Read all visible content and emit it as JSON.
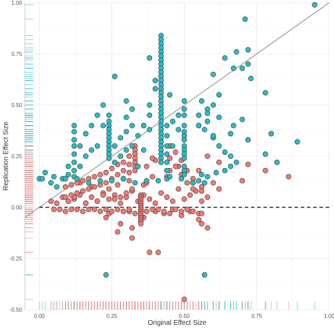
{
  "chart_data": {
    "type": "scatter",
    "title": "",
    "xlabel": "Original Effect Size",
    "ylabel": "Replication Effect Size",
    "xlim": [
      -0.05,
      1.0
    ],
    "ylim": [
      -0.5,
      1.0
    ],
    "x_ticks": [
      0.0,
      0.25,
      0.5,
      0.75,
      1.0
    ],
    "x_tick_labels": [
      "0.00",
      "0.25",
      "0.50",
      "0.75",
      "1.00"
    ],
    "y_ticks": [
      -0.5,
      -0.25,
      0.0,
      0.25,
      0.5,
      0.75,
      1.0
    ],
    "y_tick_labels": [
      "-0.50",
      "-0.25",
      "0.00",
      "0.25",
      "0.50",
      "0.75",
      "1.00"
    ],
    "grid": true,
    "legend": "none",
    "reference_lines": [
      {
        "kind": "identity",
        "description": "y = x",
        "color": "#999999",
        "style": "solid"
      },
      {
        "kind": "horizontal",
        "y": 0,
        "color": "#000000",
        "style": "dashed"
      }
    ],
    "colors": {
      "positive": "#2bbcc4",
      "negative": "#f07b73"
    },
    "rug": true,
    "series": [
      {
        "color": "#2bbcc4",
        "x": [
          0.95,
          0.71,
          0.72,
          0.72,
          0.68,
          0.64,
          0.67,
          0.7,
          0.6,
          0.78,
          0.73,
          0.62,
          0.6,
          0.56,
          0.58,
          0.55,
          0.55,
          0.57,
          0.6,
          0.62,
          0.64,
          0.66,
          0.68,
          0.66,
          0.64,
          0.61,
          0.58,
          0.55,
          0.53,
          0.58,
          0.62,
          0.67,
          0.7,
          0.8,
          0.89,
          0.82,
          0.78,
          0.72,
          0.66,
          0.6,
          0.58,
          0.55,
          0.56,
          0.57,
          0.5,
          0.5,
          0.5,
          0.5,
          0.5,
          0.5,
          0.5,
          0.5,
          0.5,
          0.5,
          0.5,
          0.5,
          0.5,
          0.5,
          0.48,
          0.48,
          0.46,
          0.46,
          0.44,
          0.44,
          0.44,
          0.44,
          0.44,
          0.44,
          0.44,
          0.42,
          0.42,
          0.42,
          0.42,
          0.42,
          0.42,
          0.42,
          0.42,
          0.42,
          0.42,
          0.42,
          0.42,
          0.42,
          0.42,
          0.42,
          0.42,
          0.42,
          0.42,
          0.42,
          0.42,
          0.42,
          0.42,
          0.42,
          0.42,
          0.42,
          0.42,
          0.42,
          0.42,
          0.42,
          0.42,
          0.42,
          0.42,
          0.4,
          0.4,
          0.38,
          0.38,
          0.38,
          0.36,
          0.36,
          0.34,
          0.34,
          0.32,
          0.32,
          0.32,
          0.3,
          0.3,
          0.3,
          0.3,
          0.28,
          0.28,
          0.26,
          0.26,
          0.24,
          0.24,
          0.24,
          0.24,
          0.24,
          0.24,
          0.24,
          0.24,
          0.24,
          0.24,
          0.24,
          0.22,
          0.22,
          0.2,
          0.2,
          0.18,
          0.18,
          0.16,
          0.16,
          0.14,
          0.14,
          0.12,
          0.12,
          0.12,
          0.12,
          0.12,
          0.12,
          0.12,
          0.12,
          0.1,
          0.1,
          0.08,
          0.06,
          0.04,
          0.02,
          0.0,
          0.01,
          0.05,
          0.09,
          0.13,
          0.17,
          0.21,
          0.25,
          0.29,
          0.33,
          0.37,
          0.41,
          0.45,
          0.49,
          0.53,
          0.38,
          0.4,
          0.45,
          0.26,
          0.36,
          0.23,
          0.57
        ],
        "y": [
          0.99,
          0.92,
          0.77,
          0.7,
          0.76,
          0.73,
          0.68,
          0.68,
          0.65,
          0.56,
          0.63,
          0.55,
          0.5,
          0.52,
          0.48,
          0.45,
          0.4,
          0.38,
          0.34,
          0.3,
          0.27,
          0.25,
          0.22,
          0.2,
          0.18,
          0.17,
          0.15,
          0.13,
          0.12,
          0.46,
          0.44,
          0.4,
          0.43,
          0.36,
          0.32,
          0.22,
          0.26,
          0.33,
          0.36,
          0.35,
          0.42,
          0.4,
          0.16,
          0.12,
          0.52,
          0.48,
          0.45,
          0.4,
          0.37,
          0.35,
          0.33,
          0.3,
          0.28,
          0.26,
          0.24,
          0.2,
          0.18,
          0.16,
          0.45,
          0.38,
          0.42,
          0.3,
          0.4,
          0.35,
          0.3,
          0.26,
          0.22,
          0.18,
          0.14,
          0.84,
          0.82,
          0.8,
          0.78,
          0.76,
          0.74,
          0.72,
          0.7,
          0.68,
          0.66,
          0.64,
          0.62,
          0.6,
          0.58,
          0.56,
          0.54,
          0.52,
          0.5,
          0.48,
          0.46,
          0.44,
          0.42,
          0.4,
          0.38,
          0.36,
          0.34,
          0.32,
          0.3,
          0.28,
          0.26,
          0.24,
          0.22,
          0.62,
          0.58,
          0.5,
          0.45,
          0.38,
          0.4,
          0.28,
          0.35,
          0.2,
          0.48,
          0.4,
          0.3,
          0.52,
          0.44,
          0.37,
          0.28,
          0.34,
          0.25,
          0.3,
          0.22,
          0.45,
          0.42,
          0.4,
          0.38,
          0.36,
          0.34,
          0.32,
          0.3,
          0.28,
          0.26,
          0.24,
          0.5,
          0.4,
          0.45,
          0.3,
          0.4,
          0.28,
          0.36,
          0.25,
          0.3,
          0.2,
          0.4,
          0.37,
          0.33,
          0.3,
          0.26,
          0.22,
          0.18,
          0.15,
          0.2,
          0.16,
          0.14,
          0.1,
          0.12,
          0.17,
          0.14,
          0.14,
          0.15,
          0.14,
          0.14,
          0.12,
          0.13,
          0.13,
          0.14,
          0.12,
          0.13,
          0.13,
          0.15,
          0.14,
          0.12,
          0.73,
          0.62,
          0.55,
          0.64,
          0.4,
          -0.33,
          -0.33
        ]
      },
      {
        "color": "#f07b73",
        "x": [
          0.5,
          0.41,
          0.38,
          0.32,
          0.32,
          0.27,
          0.23,
          0.24,
          0.28,
          0.31,
          0.36,
          0.4,
          0.43,
          0.46,
          0.49,
          0.52,
          0.55,
          0.58,
          0.55,
          0.53,
          0.51,
          0.49,
          0.47,
          0.45,
          0.43,
          0.41,
          0.39,
          0.37,
          0.35,
          0.33,
          0.31,
          0.29,
          0.27,
          0.25,
          0.23,
          0.21,
          0.19,
          0.17,
          0.15,
          0.13,
          0.11,
          0.09,
          0.07,
          0.05,
          0.04,
          0.06,
          0.08,
          0.1,
          0.12,
          0.14,
          0.16,
          0.18,
          0.2,
          0.22,
          0.24,
          0.26,
          0.28,
          0.3,
          0.32,
          0.34,
          0.36,
          0.38,
          0.4,
          0.42,
          0.44,
          0.46,
          0.48,
          0.5,
          0.52,
          0.54,
          0.56,
          0.58,
          0.6,
          0.62,
          0.72,
          0.86,
          0.78,
          0.7,
          0.62,
          0.58,
          0.55,
          0.48,
          0.44,
          0.4,
          0.36,
          0.32,
          0.3,
          0.28,
          0.26,
          0.24,
          0.22,
          0.2,
          0.18,
          0.16,
          0.14,
          0.12,
          0.1,
          0.33,
          0.33,
          0.33,
          0.33,
          0.33,
          0.33,
          0.33,
          0.31,
          0.31,
          0.31,
          0.31,
          0.29,
          0.29,
          0.29,
          0.27,
          0.27,
          0.27,
          0.25,
          0.25,
          0.23,
          0.23,
          0.21,
          0.21,
          0.19,
          0.19,
          0.17,
          0.17,
          0.15,
          0.15,
          0.13,
          0.13,
          0.11,
          0.11,
          0.09,
          0.09,
          0.45,
          0.45,
          0.45,
          0.47,
          0.47,
          0.49,
          0.49,
          0.51,
          0.51,
          0.53,
          0.53,
          0.56,
          0.56,
          0.56,
          0.56,
          0.39,
          0.39,
          0.37,
          0.37,
          0.35,
          0.35,
          0.35,
          0.35,
          0.35,
          0.35,
          0.35,
          0.35,
          0.35,
          0.35,
          0.35,
          0.35,
          0.35,
          0.35,
          0.35
        ],
        "y": [
          -0.45,
          -0.22,
          -0.22,
          -0.15,
          -0.1,
          -0.12,
          -0.05,
          -0.03,
          -0.08,
          -0.02,
          -0.05,
          -0.02,
          -0.03,
          -0.01,
          -0.04,
          -0.02,
          -0.06,
          -0.1,
          -0.03,
          -0.02,
          -0.01,
          -0.02,
          -0.01,
          -0.03,
          -0.02,
          -0.01,
          -0.01,
          -0.02,
          -0.01,
          -0.03,
          -0.01,
          -0.02,
          -0.01,
          -0.02,
          -0.01,
          -0.02,
          -0.01,
          -0.01,
          -0.02,
          -0.01,
          -0.01,
          -0.02,
          -0.01,
          -0.01,
          0.03,
          0.02,
          0.05,
          0.03,
          0.04,
          0.06,
          0.02,
          0.05,
          0.03,
          0.07,
          0.04,
          0.06,
          0.02,
          0.05,
          0.08,
          0.03,
          0.06,
          0.04,
          0.02,
          0.07,
          0.05,
          0.03,
          0.09,
          0.04,
          0.06,
          0.08,
          0.1,
          0.05,
          0.12,
          0.09,
          0.21,
          0.15,
          0.18,
          0.13,
          0.22,
          0.25,
          0.18,
          0.2,
          0.15,
          0.23,
          0.11,
          0.09,
          0.07,
          0.05,
          0.04,
          0.09,
          0.06,
          0.03,
          0.1,
          0.02,
          0.12,
          0.05,
          0.03,
          0.3,
          0.28,
          0.26,
          0.24,
          0.22,
          0.2,
          0.18,
          0.25,
          0.21,
          0.17,
          0.13,
          0.22,
          0.18,
          0.14,
          0.21,
          0.16,
          0.11,
          0.19,
          0.14,
          0.17,
          0.12,
          0.16,
          0.11,
          0.15,
          0.1,
          0.14,
          0.09,
          0.13,
          0.08,
          0.12,
          0.07,
          0.11,
          0.06,
          0.1,
          0.05,
          0.3,
          0.24,
          0.18,
          0.27,
          0.2,
          0.23,
          0.16,
          0.18,
          0.12,
          0.14,
          0.09,
          0.08,
          0.03,
          -0.03,
          -0.08,
          0.24,
          0.15,
          0.2,
          0.12,
          0.06,
          0.05,
          0.04,
          0.03,
          0.02,
          0.01,
          0.0,
          -0.01,
          -0.02,
          -0.03,
          -0.04,
          -0.05,
          -0.06,
          -0.07,
          -0.08
        ]
      }
    ]
  }
}
